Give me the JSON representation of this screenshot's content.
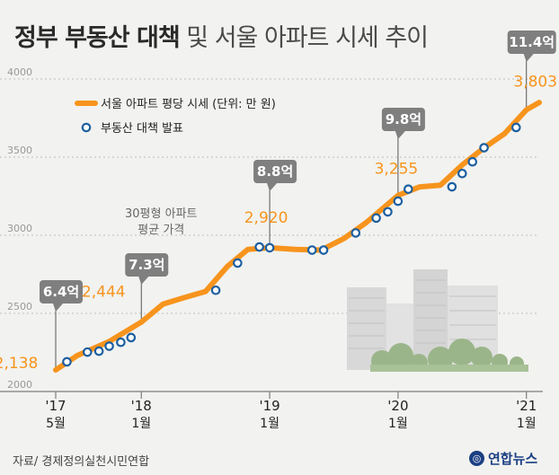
{
  "title_bold": "정부 부동산 대책",
  "title_light": "및 서울 아파트 시세 추이",
  "source": "자료/ 경제정의실천시민연합",
  "logo_text": "연합뉴스",
  "chart_data": {
    "type": "line",
    "ylim": [
      2000,
      4000
    ],
    "yticks": [
      2000,
      2500,
      3000,
      3500,
      4000
    ],
    "xlim": [
      2017.333,
      2021.1
    ],
    "xticks": [
      {
        "x": 2017.333,
        "top": "'17",
        "bottom": "5월"
      },
      {
        "x": 2018.0,
        "top": "'18",
        "bottom": "1월"
      },
      {
        "x": 2019.0,
        "top": "'19",
        "bottom": "1월"
      },
      {
        "x": 2020.0,
        "top": "'20",
        "bottom": "1월"
      },
      {
        "x": 2021.0,
        "top": "'21",
        "bottom": "1월"
      }
    ],
    "legend": {
      "line": "서울 아파트 평당 시세 (단위: 만 원)",
      "marker": "부동산 대책 발표"
    },
    "colors": {
      "line": "#f7941d",
      "marker": "#1d5fa0",
      "axis": "#7d7d7d",
      "callout": "#7f7f7f",
      "value": "#f7941d"
    },
    "series": [
      {
        "x": [
          2017.333,
          2017.5,
          2017.75,
          2018.0,
          2018.17,
          2018.33,
          2018.5,
          2018.67,
          2018.83,
          2019.0,
          2019.2,
          2019.4,
          2019.58,
          2019.75,
          2020.0,
          2020.17,
          2020.33,
          2020.5,
          2020.67,
          2020.83,
          2021.0,
          2021.1
        ],
        "y": [
          2138,
          2230,
          2320,
          2444,
          2560,
          2600,
          2640,
          2800,
          2910,
          2920,
          2910,
          2905,
          2980,
          3080,
          3255,
          3310,
          3320,
          3450,
          3560,
          3650,
          3803,
          3850
        ]
      }
    ],
    "policy_markers": [
      {
        "x": 2017.42,
        "y": 2190
      },
      {
        "x": 2017.58,
        "y": 2252
      },
      {
        "x": 2017.67,
        "y": 2258
      },
      {
        "x": 2017.75,
        "y": 2290
      },
      {
        "x": 2017.84,
        "y": 2315
      },
      {
        "x": 2017.92,
        "y": 2345
      },
      {
        "x": 2018.58,
        "y": 2648
      },
      {
        "x": 2018.75,
        "y": 2822
      },
      {
        "x": 2018.92,
        "y": 2925
      },
      {
        "x": 2019.0,
        "y": 2920
      },
      {
        "x": 2019.33,
        "y": 2905
      },
      {
        "x": 2019.42,
        "y": 2905
      },
      {
        "x": 2019.67,
        "y": 3015
      },
      {
        "x": 2019.83,
        "y": 3110
      },
      {
        "x": 2019.92,
        "y": 3150
      },
      {
        "x": 2020.0,
        "y": 3218
      },
      {
        "x": 2020.08,
        "y": 3295
      },
      {
        "x": 2020.42,
        "y": 3310
      },
      {
        "x": 2020.5,
        "y": 3395
      },
      {
        "x": 2020.58,
        "y": 3470
      },
      {
        "x": 2020.67,
        "y": 3560
      },
      {
        "x": 2020.92,
        "y": 3690
      }
    ],
    "value_labels": [
      {
        "x": 2017.333,
        "y": 2138,
        "text": "2,138"
      },
      {
        "x": 2018.0,
        "y": 2444,
        "text": "2,444"
      },
      {
        "x": 2019.0,
        "y": 2920,
        "text": "2,920"
      },
      {
        "x": 2020.0,
        "y": 3255,
        "text": "3,255"
      },
      {
        "x": 2021.0,
        "y": 3803,
        "text": "3,803"
      }
    ],
    "callouts": [
      {
        "x": 2017.333,
        "y": 2138,
        "text": "6.4억"
      },
      {
        "x": 2018.0,
        "y": 2444,
        "text": "7.3억",
        "note": [
          "30평형 아파트",
          "평균 가격"
        ]
      },
      {
        "x": 2019.0,
        "y": 2920,
        "text": "8.8억"
      },
      {
        "x": 2020.0,
        "y": 3255,
        "text": "9.8억"
      },
      {
        "x": 2021.0,
        "y": 3803,
        "text": "11.4억"
      }
    ]
  }
}
